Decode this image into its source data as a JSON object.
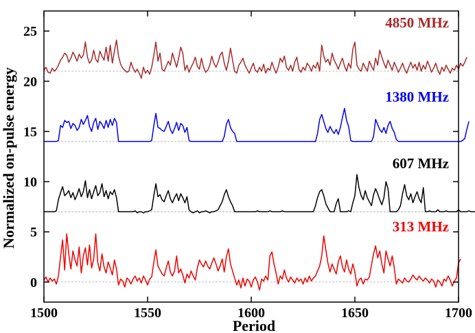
{
  "chart_data": {
    "type": "line",
    "xlabel": "Period",
    "ylabel": "Normalized on-pulse energy",
    "xlim": [
      1500,
      1700
    ],
    "ylim": [
      -2,
      27
    ],
    "x_ticks": [
      "1500",
      "1550",
      "1600",
      "1650",
      "1700"
    ],
    "y_ticks": [
      "0",
      "5",
      "10",
      "15",
      "20",
      "25"
    ],
    "x_tick_values": [
      1500,
      1550,
      1600,
      1650,
      1700
    ],
    "y_tick_values": [
      0,
      5,
      10,
      15,
      20,
      25
    ],
    "grid": false,
    "series": [
      {
        "name": "4850 MHz",
        "color": "#a52a2a",
        "baseline": 21,
        "x_start": 1500,
        "x_step": 1,
        "values": [
          21.1,
          21.4,
          20.9,
          20.8,
          21.3,
          21.0,
          21.2,
          21.6,
          22.1,
          22.4,
          22.8,
          22.6,
          21.9,
          22.3,
          22.9,
          22.5,
          22.0,
          22.7,
          22.3,
          22.6,
          23.9,
          22.4,
          21.8,
          22.1,
          23.1,
          22.2,
          21.9,
          23.0,
          22.5,
          22.1,
          23.4,
          22.0,
          23.6,
          21.8,
          23.0,
          24.1,
          22.5,
          21.7,
          21.3,
          21.1,
          20.9,
          21.0,
          21.9,
          21.3,
          20.9,
          21.2,
          20.8,
          20.3,
          21.4,
          20.8,
          21.1,
          20.7,
          21.4,
          22.6,
          23.9,
          22.0,
          22.8,
          21.2,
          21.0,
          21.5,
          22.0,
          21.6,
          22.8,
          22.1,
          21.4,
          22.3,
          23.4,
          22.8,
          21.1,
          21.6,
          20.9,
          21.4,
          21.8,
          22.4,
          21.5,
          21.2,
          22.3,
          21.4,
          20.9,
          21.1,
          21.6,
          22.5,
          21.8,
          21.4,
          21.9,
          22.6,
          22.9,
          21.8,
          21.1,
          22.0,
          23.3,
          22.1,
          21.0,
          20.8,
          21.6,
          21.9,
          22.3,
          21.6,
          21.2,
          20.8,
          21.3,
          21.8,
          21.1,
          20.9,
          21.4,
          21.0,
          21.7,
          20.8,
          21.3,
          21.1,
          21.9,
          21.3,
          20.8,
          21.4,
          22.3,
          21.9,
          22.5,
          21.4,
          21.1,
          21.6,
          21.0,
          21.9,
          22.4,
          21.2,
          20.9,
          21.4,
          21.1,
          21.8,
          21.5,
          21.0,
          21.6,
          21.3,
          21.9,
          21.0,
          23.6,
          22.5,
          21.9,
          22.2,
          21.6,
          22.8,
          22.1,
          21.7,
          21.2,
          21.8,
          22.3,
          21.5,
          21.0,
          21.8,
          21.3,
          23.2,
          23.9,
          21.6,
          21.2,
          21.0,
          21.8,
          21.4,
          21.0,
          22.0,
          21.5,
          21.1,
          22.3,
          21.6,
          23.1,
          22.4,
          21.8,
          21.3,
          22.1,
          21.6,
          21.1,
          21.9,
          21.4,
          20.9,
          21.3,
          21.8,
          21.2,
          20.8,
          21.4,
          21.9,
          21.3,
          21.7,
          21.1,
          21.9,
          21.0,
          21.6,
          21.2,
          22.0,
          21.5,
          20.9,
          21.3,
          21.8,
          21.1,
          20.7,
          21.4,
          21.0,
          21.6,
          21.2,
          20.8,
          21.3,
          21.1,
          21.6,
          21.2,
          21.8,
          21.5,
          21.9,
          22.4
        ]
      },
      {
        "name": "1380 MHz",
        "color": "#0000ee",
        "baseline": 14,
        "x_start": 1500,
        "x_step": 1,
        "values": [
          14.0,
          14.0,
          14.0,
          14.0,
          14.0,
          14.0,
          14.0,
          14.1,
          15.6,
          15.4,
          16.1,
          15.9,
          16.0,
          15.3,
          15.8,
          15.6,
          15.1,
          15.4,
          16.2,
          15.7,
          16.1,
          16.6,
          15.5,
          15.0,
          15.9,
          16.3,
          15.2,
          16.0,
          15.7,
          15.3,
          16.1,
          15.4,
          16.2,
          15.6,
          16.3,
          15.9,
          14.0,
          14.0,
          14.0,
          14.0,
          14.0,
          14.0,
          14.0,
          14.0,
          14.0,
          14.0,
          14.0,
          14.0,
          14.0,
          14.0,
          14.0,
          14.0,
          14.1,
          15.6,
          16.8,
          15.4,
          15.3,
          15.1,
          15.0,
          15.5,
          16.0,
          15.2,
          14.8,
          15.3,
          15.9,
          15.1,
          15.8,
          15.6,
          14.9,
          15.4,
          14.1,
          14.0,
          14.0,
          14.0,
          14.0,
          14.0,
          14.0,
          14.0,
          14.0,
          14.0,
          14.0,
          14.0,
          14.0,
          14.0,
          14.0,
          14.0,
          14.0,
          14.5,
          15.7,
          16.2,
          15.4,
          15.0,
          14.8,
          14.0,
          14.0,
          14.0,
          14.0,
          14.0,
          14.0,
          14.0,
          14.0,
          14.0,
          14.0,
          14.0,
          14.0,
          14.0,
          14.0,
          14.0,
          14.0,
          14.0,
          14.0,
          14.0,
          14.0,
          14.0,
          14.0,
          14.0,
          14.0,
          14.0,
          14.0,
          14.0,
          14.0,
          14.0,
          14.0,
          14.0,
          14.0,
          14.0,
          14.0,
          14.0,
          14.0,
          14.0,
          14.0,
          14.0,
          14.8,
          16.2,
          16.7,
          16.0,
          15.3,
          14.9,
          15.5,
          15.1,
          14.8,
          15.2,
          14.7,
          15.4,
          16.4,
          17.3,
          16.1,
          15.5,
          14.1,
          14.0,
          14.0,
          14.0,
          14.0,
          14.0,
          14.0,
          14.0,
          14.0,
          14.0,
          14.0,
          14.5,
          16.2,
          15.7,
          15.2,
          14.9,
          15.4,
          14.8,
          15.6,
          16.0,
          15.3,
          14.9,
          14.2,
          14.0,
          14.0,
          14.0,
          14.0,
          14.0,
          14.0,
          14.0,
          14.0,
          14.0,
          14.0,
          14.0,
          14.0,
          14.0,
          14.0,
          14.0,
          14.0,
          14.0,
          14.0,
          14.0,
          14.0,
          14.0,
          14.0,
          14.0,
          14.0,
          14.0,
          14.0,
          14.0,
          14.0,
          14.0,
          14.0,
          14.0,
          14.1,
          14.3,
          15.2,
          16.0
        ]
      },
      {
        "name": "607 MHz",
        "color": "#000000",
        "baseline": 7,
        "x_start": 1500,
        "x_step": 1,
        "values": [
          7.0,
          7.0,
          7.0,
          7.0,
          7.0,
          7.0,
          7.1,
          8.2,
          8.9,
          9.5,
          8.6,
          8.8,
          9.1,
          8.4,
          8.9,
          8.2,
          8.7,
          9.3,
          8.5,
          9.0,
          10.1,
          8.4,
          9.2,
          8.3,
          9.0,
          9.6,
          8.6,
          8.9,
          9.8,
          8.5,
          9.1,
          8.3,
          9.0,
          8.7,
          9.2,
          8.4,
          7.0,
          7.0,
          7.0,
          7.0,
          7.0,
          7.0,
          7.0,
          7.0,
          7.1,
          6.9,
          7.0,
          7.0,
          6.9,
          7.0,
          7.0,
          7.1,
          7.2,
          8.6,
          9.8,
          8.5,
          8.7,
          8.2,
          8.0,
          8.6,
          9.1,
          8.3,
          7.9,
          8.4,
          8.8,
          8.1,
          8.8,
          8.4,
          7.9,
          8.5,
          7.2,
          7.0,
          6.9,
          7.0,
          7.1,
          6.9,
          7.0,
          7.0,
          7.1,
          7.0,
          6.9,
          7.0,
          7.0,
          7.1,
          7.2,
          7.6,
          8.0,
          8.7,
          9.2,
          8.5,
          8.0,
          7.6,
          7.0,
          7.0,
          7.0,
          7.0,
          7.0,
          7.0,
          7.0,
          7.0,
          7.0,
          7.0,
          7.0,
          7.1,
          7.0,
          7.0,
          7.0,
          7.0,
          7.0,
          7.1,
          7.0,
          7.0,
          7.0,
          7.0,
          7.0,
          7.1,
          7.0,
          7.0,
          7.0,
          7.0,
          7.0,
          7.0,
          7.0,
          7.0,
          7.0,
          7.0,
          7.0,
          7.0,
          7.0,
          7.0,
          7.0,
          7.6,
          8.4,
          9.0,
          9.2,
          8.6,
          7.8,
          7.4,
          7.0,
          7.0,
          7.0,
          7.8,
          8.3,
          7.0,
          7.0,
          7.0,
          7.0,
          7.1,
          7.0,
          7.9,
          8.6,
          10.7,
          9.4,
          8.6,
          8.2,
          9.1,
          8.4,
          8.0,
          7.6,
          8.7,
          9.3,
          8.8,
          8.2,
          7.7,
          8.4,
          10.0,
          9.3,
          7.0,
          7.0,
          7.0,
          7.0,
          7.2,
          7.6,
          8.8,
          9.7,
          8.6,
          8.2,
          8.8,
          7.9,
          8.5,
          9.0,
          8.3,
          7.9,
          9.4,
          7.0,
          7.0,
          7.1,
          7.0,
          7.0,
          7.0,
          7.2,
          7.0,
          7.0,
          7.0,
          7.1,
          7.0,
          7.0,
          7.0,
          7.0,
          7.0,
          7.2,
          7.0,
          7.0,
          7.0,
          7.0,
          7.1,
          7.0,
          7.0,
          7.0,
          7.0,
          8.5,
          9.1
        ]
      },
      {
        "name": "313 MHz",
        "color": "#ee0000",
        "baseline": 0,
        "x_start": 1500,
        "x_step": 1,
        "values": [
          0.2,
          0.5,
          0.0,
          0.4,
          0.1,
          0.3,
          -0.2,
          0.6,
          2.5,
          4.2,
          1.2,
          4.8,
          2.8,
          1.3,
          3.1,
          2.2,
          1.6,
          3.5,
          0.9,
          2.6,
          3.4,
          1.7,
          3.7,
          1.4,
          2.3,
          4.8,
          1.9,
          1.1,
          2.8,
          1.5,
          0.9,
          2.0,
          1.4,
          0.7,
          2.2,
          1.3,
          -0.3,
          0.3,
          0.1,
          -0.5,
          0.4,
          0.2,
          -0.2,
          0.3,
          0.6,
          0.1,
          0.4,
          -0.1,
          0.6,
          0.2,
          -0.3,
          0.3,
          0.5,
          2.0,
          3.2,
          1.6,
          1.2,
          0.8,
          0.6,
          1.4,
          2.1,
          1.0,
          0.6,
          1.1,
          2.6,
          0.9,
          1.3,
          0.7,
          -0.1,
          0.8,
          0.4,
          1.1,
          0.6,
          0.2,
          1.4,
          2.2,
          1.8,
          1.5,
          2.1,
          1.6,
          1.3,
          1.9,
          2.4,
          1.8,
          1.1,
          1.6,
          2.3,
          1.0,
          2.5,
          3.3,
          1.8,
          1.1,
          0.4,
          -0.3,
          0.2,
          -0.6,
          0.4,
          -0.4,
          0.3,
          0.1,
          -0.5,
          0.2,
          0.5,
          0.0,
          -0.8,
          0.3,
          0.1,
          0.6,
          0.2,
          2.6,
          3.0,
          1.8,
          0.9,
          -0.2,
          0.6,
          0.3,
          1.2,
          0.4,
          0.0,
          0.5,
          0.2,
          -0.1,
          0.4,
          0.1,
          0.3,
          -0.2,
          0.4,
          0.0,
          0.6,
          0.1,
          0.4,
          0.6,
          1.1,
          1.6,
          2.6,
          4.6,
          3.2,
          1.9,
          1.0,
          1.8,
          1.3,
          0.8,
          2.0,
          2.6,
          1.5,
          1.0,
          2.2,
          1.3,
          0.8,
          1.8,
          1.0,
          -0.4,
          0.2,
          0.4,
          -0.2,
          0.3,
          0.2,
          0.5,
          1.7,
          2.8,
          3.6,
          2.4,
          3.1,
          1.8,
          0.9,
          3.1,
          2.3,
          1.6,
          2.6,
          1.4,
          -0.2,
          0.3,
          0.1,
          -0.1,
          0.4,
          0.1,
          0.0,
          0.3,
          0.7,
          0.4,
          0.2,
          0.6,
          0.3,
          0.1,
          0.4,
          0.2,
          -0.1,
          0.3,
          0.1,
          -0.5,
          0.2,
          0.0,
          -0.4,
          0.3,
          0.1,
          0.6,
          0.2,
          -0.4,
          0.1,
          0.4,
          1.9,
          2.3
        ]
      }
    ]
  }
}
